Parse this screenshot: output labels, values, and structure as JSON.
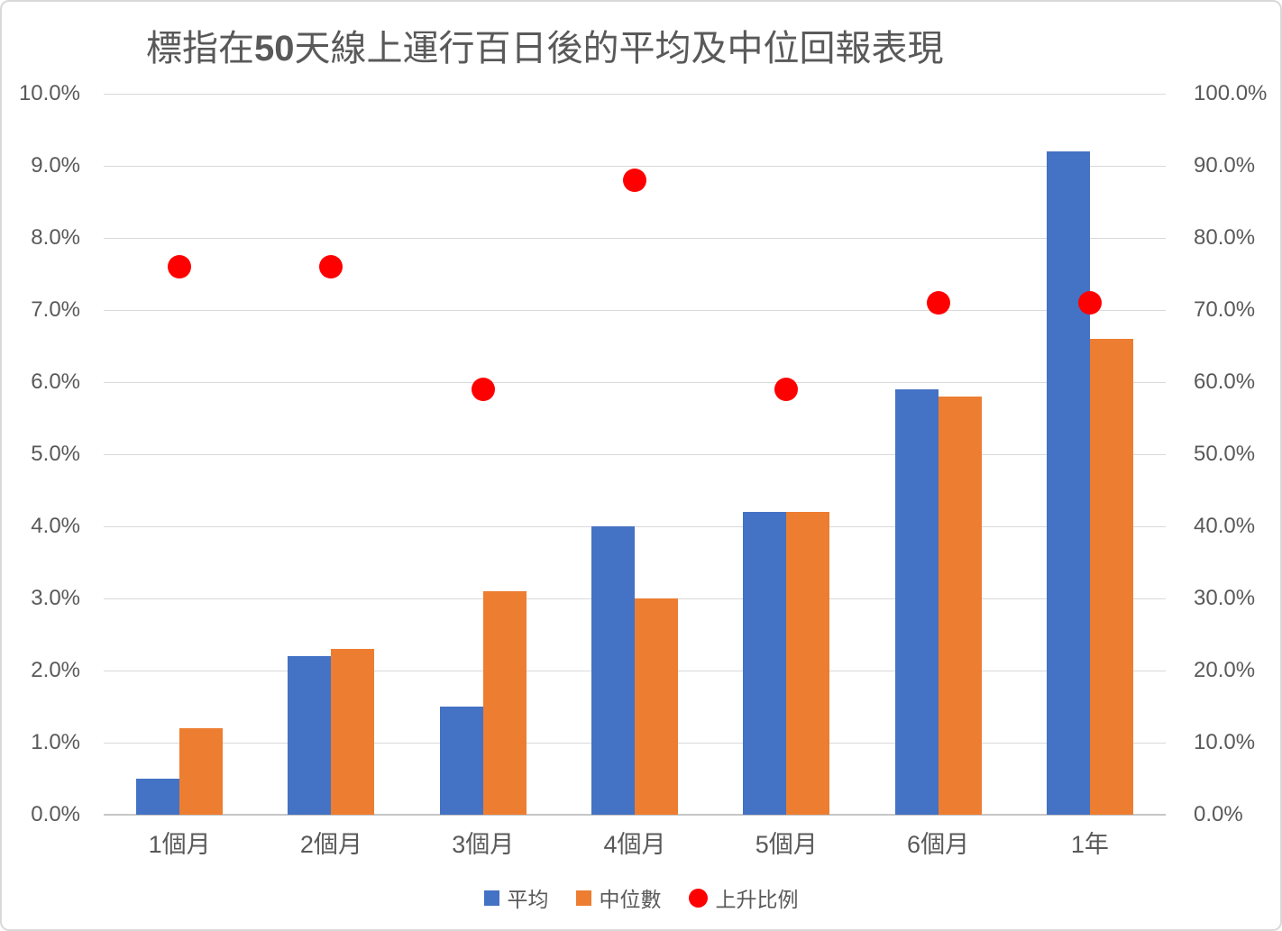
{
  "title": {
    "prefix": "標指在",
    "bold_number": "50",
    "suffix": "天線上運行百日後的平均及中位回報表現"
  },
  "chart_data": {
    "type": "combo bar+scatter",
    "categories": [
      "1個月",
      "2個月",
      "3個月",
      "4個月",
      "5個月",
      "6個月",
      "1年"
    ],
    "series": [
      {
        "name": "平均",
        "type": "bar",
        "axis": "left",
        "color": "#4472C4",
        "values": [
          0.5,
          2.2,
          1.5,
          4.0,
          4.2,
          5.9,
          9.2
        ],
        "unit": "%"
      },
      {
        "name": "中位數",
        "type": "bar",
        "axis": "left",
        "color": "#ED7D31",
        "values": [
          1.2,
          2.3,
          3.1,
          3.0,
          4.2,
          5.8,
          6.6
        ],
        "unit": "%"
      },
      {
        "name": "上升比例",
        "type": "scatter",
        "axis": "right",
        "color": "#FF0000",
        "values": [
          76,
          76,
          59,
          88,
          59,
          71,
          71
        ],
        "unit": "%"
      }
    ],
    "left_axis": {
      "min": 0,
      "max": 10,
      "step": 1,
      "tick_labels": [
        "0.0%",
        "1.0%",
        "2.0%",
        "3.0%",
        "4.0%",
        "5.0%",
        "6.0%",
        "7.0%",
        "8.0%",
        "9.0%",
        "10.0%"
      ]
    },
    "right_axis": {
      "min": 0,
      "max": 100,
      "step": 10,
      "tick_labels": [
        "0.0%",
        "10.0%",
        "20.0%",
        "30.0%",
        "40.0%",
        "50.0%",
        "60.0%",
        "70.0%",
        "80.0%",
        "90.0%",
        "100.0%"
      ]
    },
    "grid": true,
    "legend_position": "bottom",
    "colors": {
      "gridline": "#D9D9D9",
      "axis_line": "#C6C6C6",
      "text": "#595959",
      "background": "#FFFFFF"
    }
  }
}
